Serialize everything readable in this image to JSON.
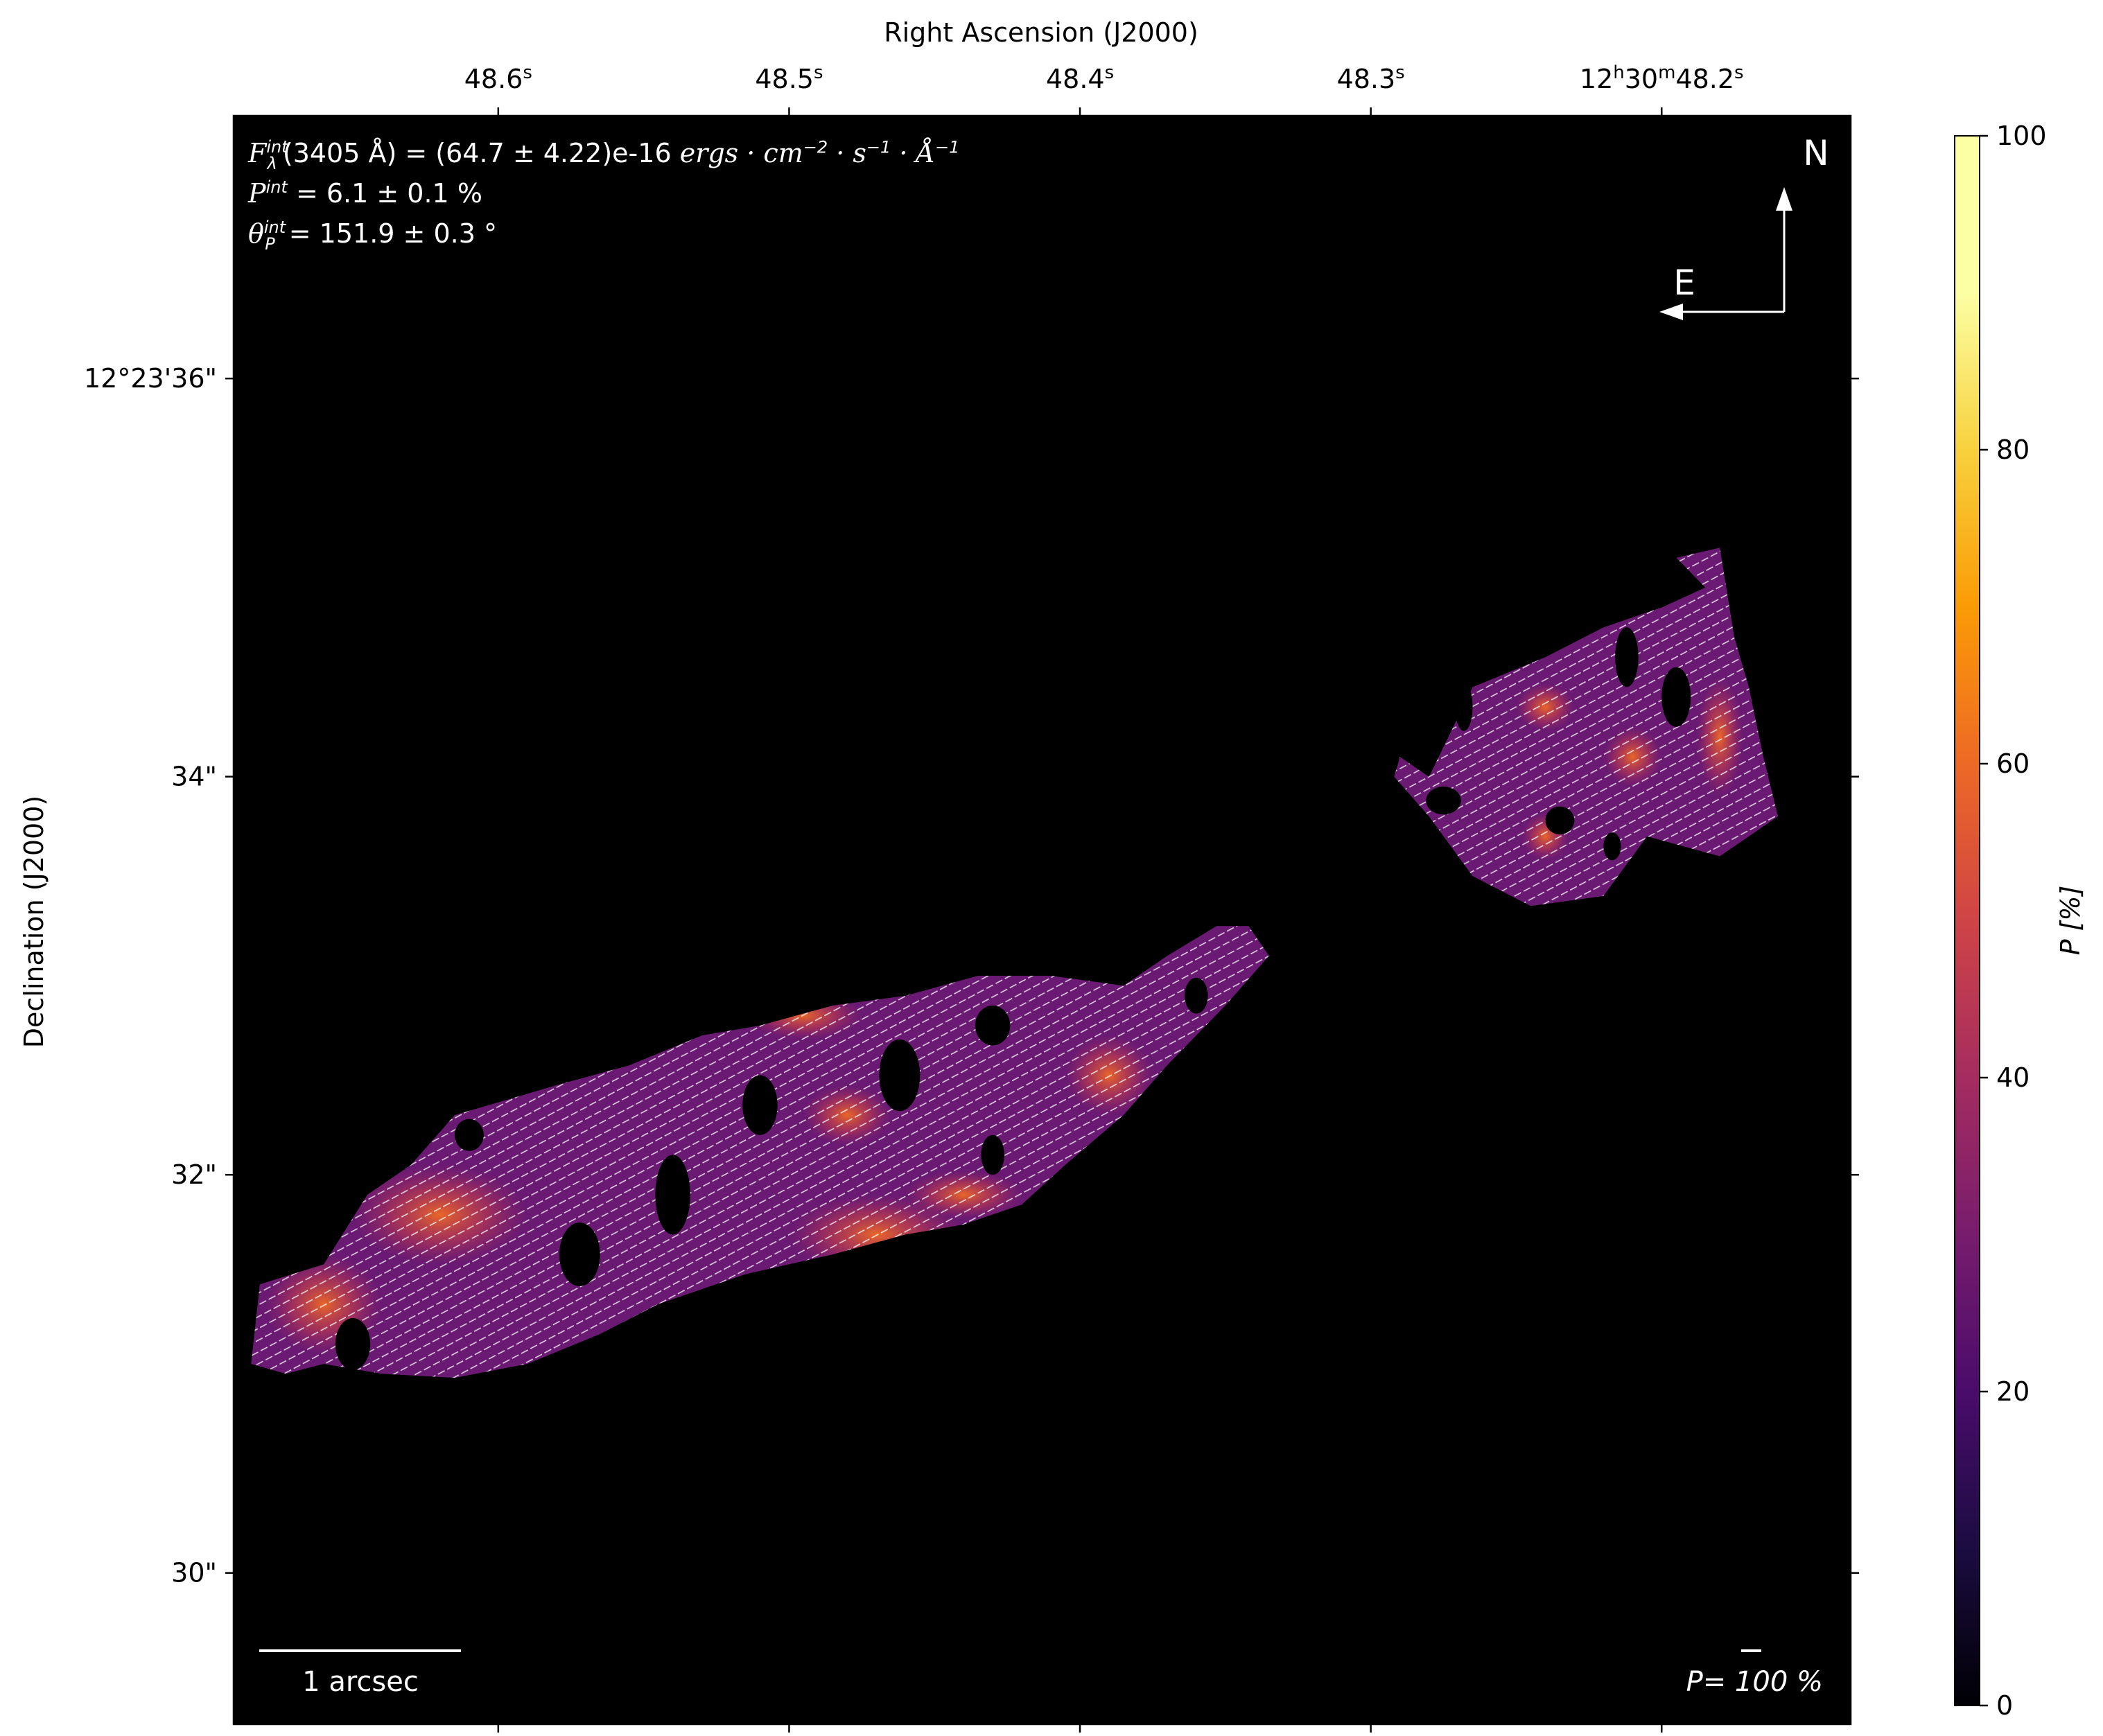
{
  "chart_data": {
    "type": "heatmap",
    "subtype": "polarization map with vectors",
    "colormap": "inferno",
    "background": "#000000",
    "top_axis": {
      "label": "Right Ascension (J2000)",
      "ticks": [
        {
          "value": 48.6,
          "label": "48.6",
          "sup": "s"
        },
        {
          "value": 48.5,
          "label": "48.5",
          "sup": "s"
        },
        {
          "value": 48.4,
          "label": "48.4",
          "sup": "s"
        },
        {
          "value": 48.3,
          "label": "48.3",
          "sup": "s"
        },
        {
          "value": 48.2,
          "label": "12",
          "sup": "h",
          "label2": "30",
          "sup2": "m",
          "label3": "48.2",
          "sup3": "s"
        }
      ],
      "xlim": [
        48.691,
        48.135
      ]
    },
    "left_axis": {
      "label": "Declination (J2000)",
      "ticks": [
        {
          "value": 36,
          "label": "12°23'36\""
        },
        {
          "value": 34,
          "label": "34\""
        },
        {
          "value": 32,
          "label": "32\""
        },
        {
          "value": 30,
          "label": "30\""
        }
      ],
      "ylim": [
        29.24,
        37.32
      ]
    },
    "colorbar": {
      "label": "P [%]",
      "range": [
        0,
        100
      ],
      "ticks": [
        0,
        20,
        40,
        60,
        80,
        100
      ]
    },
    "info": {
      "flux_prefix": "F",
      "flux_sup": "int",
      "flux_sub": "λ",
      "flux_wave": "(3405 Å) = (64.7 ± 4.22)e-16 ",
      "flux_units": "ergs · cm",
      "flux_units_exp1": "−2",
      "flux_units_mid": " · s",
      "flux_units_exp2": "−1",
      "flux_units_end": " · Å",
      "flux_units_exp3": "−1",
      "p_prefix": "P",
      "p_sup": "int",
      "p_value": " = 6.1 ± 0.1 %",
      "theta_prefix": "θ",
      "theta_sup": "int",
      "theta_sub": "P",
      "theta_value": " = 151.9 ± 0.3 °"
    },
    "compass": {
      "north": "N",
      "east": "E"
    },
    "scale_bar": {
      "label": "1 arcsec"
    },
    "vector_key": {
      "label": "P= 100 %"
    },
    "regions": [
      {
        "name": "elongated-region",
        "outline_radec": [
          [
            48.685,
            31.05
          ],
          [
            48.682,
            31.45
          ],
          [
            48.66,
            31.55
          ],
          [
            48.645,
            31.9
          ],
          [
            48.63,
            32.05
          ],
          [
            48.615,
            32.3
          ],
          [
            48.58,
            32.45
          ],
          [
            48.555,
            32.55
          ],
          [
            48.53,
            32.7
          ],
          [
            48.51,
            32.75
          ],
          [
            48.485,
            32.85
          ],
          [
            48.46,
            32.9
          ],
          [
            48.435,
            33.0
          ],
          [
            48.41,
            33.0
          ],
          [
            48.385,
            32.95
          ],
          [
            48.37,
            33.1
          ],
          [
            48.353,
            33.25
          ],
          [
            48.342,
            33.25
          ],
          [
            48.335,
            33.1
          ],
          [
            48.35,
            32.85
          ],
          [
            48.37,
            32.55
          ],
          [
            48.385,
            32.3
          ],
          [
            48.405,
            32.05
          ],
          [
            48.42,
            31.85
          ],
          [
            48.44,
            31.75
          ],
          [
            48.46,
            31.7
          ],
          [
            48.485,
            31.6
          ],
          [
            48.515,
            31.5
          ],
          [
            48.545,
            31.35
          ],
          [
            48.565,
            31.2
          ],
          [
            48.59,
            31.05
          ],
          [
            48.615,
            30.98
          ],
          [
            48.64,
            31.0
          ],
          [
            48.66,
            31.05
          ],
          [
            48.673,
            31.0
          ]
        ],
        "holes_radec": [
          [
            48.65,
            31.15,
            0.006,
            0.13
          ],
          [
            48.572,
            31.6,
            0.007,
            0.16
          ],
          [
            48.54,
            31.9,
            0.006,
            0.2
          ],
          [
            48.51,
            32.35,
            0.006,
            0.15
          ],
          [
            48.462,
            32.5,
            0.007,
            0.18
          ],
          [
            48.43,
            32.75,
            0.006,
            0.1
          ],
          [
            48.36,
            32.9,
            0.004,
            0.09
          ],
          [
            48.43,
            32.1,
            0.004,
            0.1
          ],
          [
            48.61,
            32.2,
            0.005,
            0.08
          ]
        ],
        "hot_spots_radec": [
          [
            48.495,
            32.8,
            0.02,
            0.12
          ],
          [
            48.47,
            31.7,
            0.03,
            0.2
          ],
          [
            48.44,
            31.9,
            0.02,
            0.12
          ],
          [
            48.62,
            31.8,
            0.03,
            0.25
          ],
          [
            48.66,
            31.35,
            0.02,
            0.25
          ],
          [
            48.39,
            32.5,
            0.015,
            0.2
          ],
          [
            48.48,
            32.3,
            0.015,
            0.15
          ]
        ]
      },
      {
        "name": "compact-region",
        "outline_radec": [
          [
            48.28,
            34.0
          ],
          [
            48.265,
            34.45
          ],
          [
            48.24,
            34.6
          ],
          [
            48.22,
            34.75
          ],
          [
            48.2,
            34.85
          ],
          [
            48.185,
            34.95
          ],
          [
            48.195,
            35.1
          ],
          [
            48.18,
            35.15
          ],
          [
            48.175,
            34.7
          ],
          [
            48.17,
            34.45
          ],
          [
            48.165,
            34.1
          ],
          [
            48.16,
            33.8
          ],
          [
            48.18,
            33.6
          ],
          [
            48.205,
            33.7
          ],
          [
            48.22,
            33.4
          ],
          [
            48.245,
            33.35
          ],
          [
            48.265,
            33.5
          ],
          [
            48.275,
            33.7
          ],
          [
            48.28,
            33.8
          ],
          [
            48.292,
            34.0
          ],
          [
            48.29,
            34.1
          ]
        ],
        "holes_radec": [
          [
            48.268,
            34.35,
            0.003,
            0.12
          ],
          [
            48.275,
            33.88,
            0.006,
            0.07
          ],
          [
            48.235,
            33.78,
            0.005,
            0.07
          ],
          [
            48.217,
            33.65,
            0.003,
            0.07
          ],
          [
            48.195,
            34.4,
            0.005,
            0.15
          ],
          [
            48.212,
            34.6,
            0.004,
            0.15
          ]
        ],
        "hot_spots_radec": [
          [
            48.18,
            34.2,
            0.008,
            0.3
          ],
          [
            48.21,
            34.1,
            0.01,
            0.15
          ],
          [
            48.24,
            33.7,
            0.008,
            0.12
          ],
          [
            48.24,
            34.35,
            0.01,
            0.12
          ]
        ]
      }
    ]
  }
}
